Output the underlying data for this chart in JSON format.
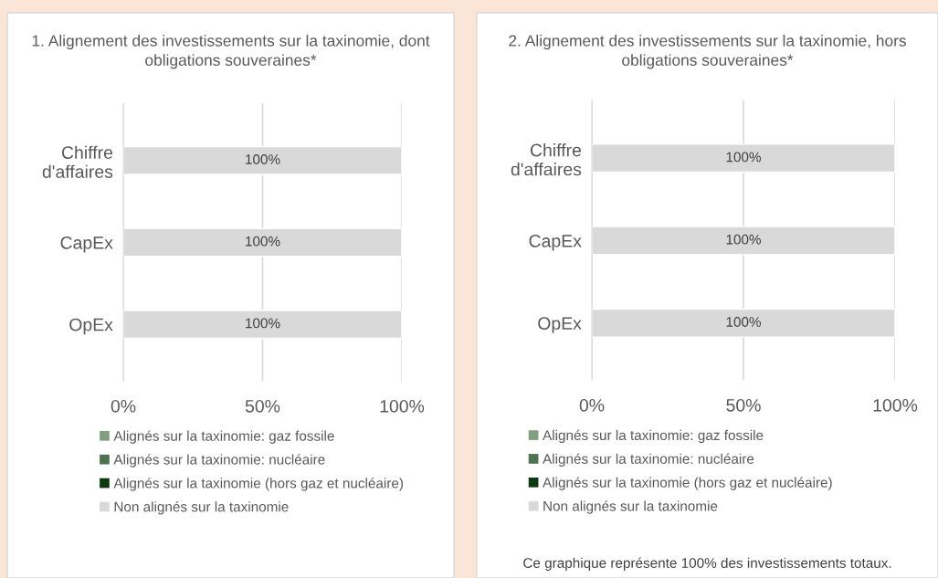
{
  "chart_data": [
    {
      "type": "bar",
      "orientation": "horizontal",
      "stacked": true,
      "title": "1. Alignement des investissements sur la taxinomie, dont obligations souveraines*",
      "categories": [
        "Chiffre\nd'affaires",
        "CapEx",
        "OpEx"
      ],
      "series": [
        {
          "name": "Alignés sur la taxinomie: gaz fossile",
          "color": "#80a07f",
          "values": [
            0,
            0,
            0
          ]
        },
        {
          "name": "Alignés sur la taxinomie: nucléaire",
          "color": "#4e7350",
          "values": [
            0,
            0,
            0
          ]
        },
        {
          "name": "Alignés sur la taxinomie (hors gaz et nucléaire)",
          "color": "#0b3a0f",
          "values": [
            0,
            0,
            0
          ]
        },
        {
          "name": "Non alignés sur la taxinomie",
          "color": "#d9d9d9",
          "values": [
            100,
            100,
            100
          ],
          "value_labels": [
            "100%",
            "100%",
            "100%"
          ]
        }
      ],
      "xlim": [
        0,
        100
      ],
      "xticks": [
        {
          "value": 0,
          "label": "0%"
        },
        {
          "value": 50,
          "label": "50%"
        },
        {
          "value": 100,
          "label": "100%"
        }
      ],
      "grid": "x",
      "legend": "bottom"
    },
    {
      "type": "bar",
      "orientation": "horizontal",
      "stacked": true,
      "title": "2. Alignement des investissements sur la taxinomie, hors obligations souveraines*",
      "categories": [
        "Chiffre\nd'affaires",
        "CapEx",
        "OpEx"
      ],
      "series": [
        {
          "name": "Alignés sur la taxinomie: gaz fossile",
          "color": "#80a07f",
          "values": [
            0,
            0,
            0
          ]
        },
        {
          "name": "Alignés sur la taxinomie: nucléaire",
          "color": "#4e7350",
          "values": [
            0,
            0,
            0
          ]
        },
        {
          "name": "Alignés sur la taxinomie (hors gaz et nucléaire)",
          "color": "#0b3a0f",
          "values": [
            0,
            0,
            0
          ]
        },
        {
          "name": "Non alignés sur la taxinomie",
          "color": "#d9d9d9",
          "values": [
            100,
            100,
            100
          ],
          "value_labels": [
            "100%",
            "100%",
            "100%"
          ]
        }
      ],
      "xlim": [
        0,
        100
      ],
      "xticks": [
        {
          "value": 0,
          "label": "0%"
        },
        {
          "value": 50,
          "label": "50%"
        },
        {
          "value": 100,
          "label": "100%"
        }
      ],
      "grid": "x",
      "legend": "bottom",
      "annotations": [
        "Ce graphique représente 100% des investissements totaux."
      ]
    }
  ]
}
